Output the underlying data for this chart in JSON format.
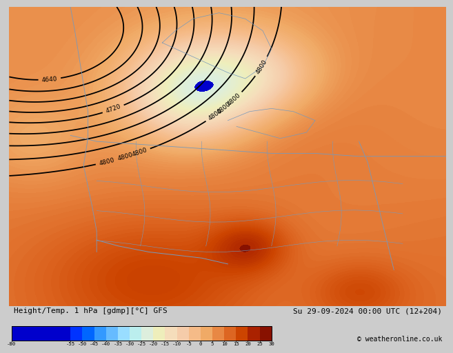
{
  "title_left": "Height/Temp. 1 hPa [gdmp][°C] GFS",
  "title_right": "Su 29-09-2024 00:00 UTC (12+204)",
  "copyright": "© weatheronline.co.uk",
  "colorbar_ticks": [
    -80,
    -55,
    -50,
    -45,
    -40,
    -35,
    -30,
    -25,
    -20,
    -15,
    -10,
    -5,
    0,
    5,
    10,
    15,
    20,
    25,
    30
  ],
  "colorbar_colors": [
    "#0000cc",
    "#0033ff",
    "#0066ff",
    "#3399ff",
    "#66bbff",
    "#99ddff",
    "#bbeeee",
    "#ddeedd",
    "#eeeebb",
    "#f5ddbb",
    "#f5ccaa",
    "#f5bb88",
    "#f0aa66",
    "#e88844",
    "#dd6622",
    "#cc4400",
    "#aa2200",
    "#881100"
  ],
  "fig_bg": "#cccccc",
  "info_bg": "#cccccc"
}
